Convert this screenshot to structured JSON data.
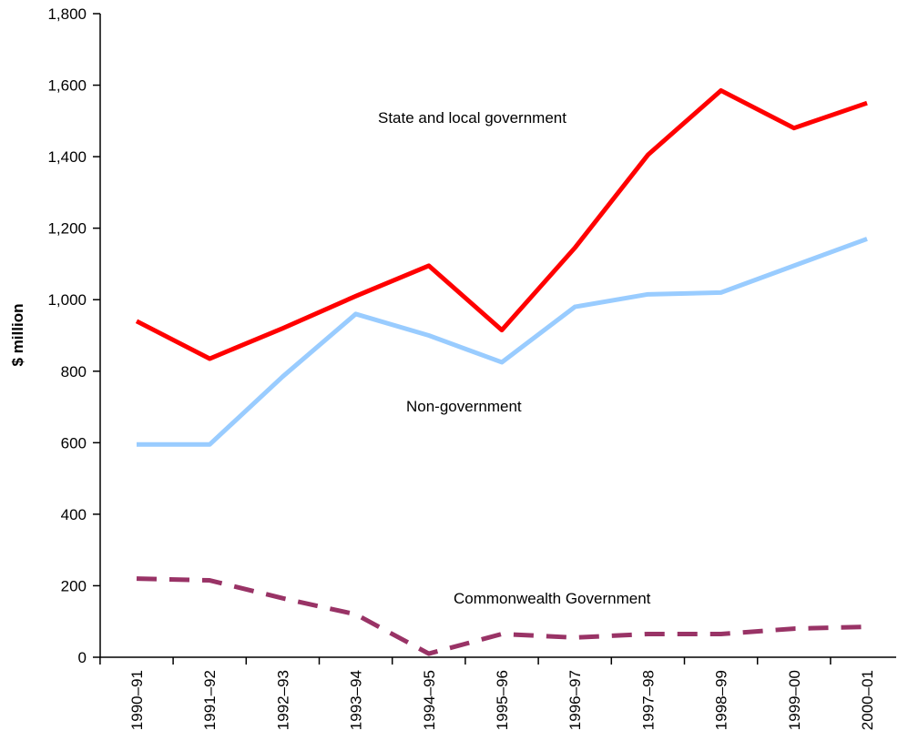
{
  "chart_data": {
    "type": "line",
    "title": "",
    "xlabel": "",
    "ylabel": "$ million",
    "ylim": [
      0,
      1800
    ],
    "yticks": [
      0,
      200,
      400,
      600,
      800,
      1000,
      1200,
      1400,
      1600,
      1800
    ],
    "ytick_labels": [
      "0",
      "200",
      "400",
      "600",
      "800",
      "1,000",
      "1,200",
      "1,400",
      "1,600",
      "1,800"
    ],
    "categories": [
      "1990–91",
      "1991–92",
      "1992–93",
      "1993–94",
      "1994–95",
      "1995–96",
      "1996–97",
      "1997–98",
      "1998–99",
      "1999–00",
      "2000–01"
    ],
    "grid": false,
    "legend": "none",
    "series": [
      {
        "name": "State and local government",
        "color": "#ff0000",
        "style": "solid",
        "values": [
          940,
          835,
          920,
          1010,
          1095,
          915,
          1145,
          1405,
          1585,
          1480,
          1550
        ]
      },
      {
        "name": "Non-government",
        "color": "#99ccff",
        "style": "solid",
        "values": [
          595,
          595,
          785,
          960,
          900,
          825,
          980,
          1015,
          1020,
          1095,
          1170
        ]
      },
      {
        "name": "Commonwealth Government",
        "color": "#993366",
        "style": "dashed",
        "values": [
          220,
          215,
          165,
          120,
          10,
          65,
          55,
          65,
          65,
          80,
          85
        ]
      }
    ]
  }
}
